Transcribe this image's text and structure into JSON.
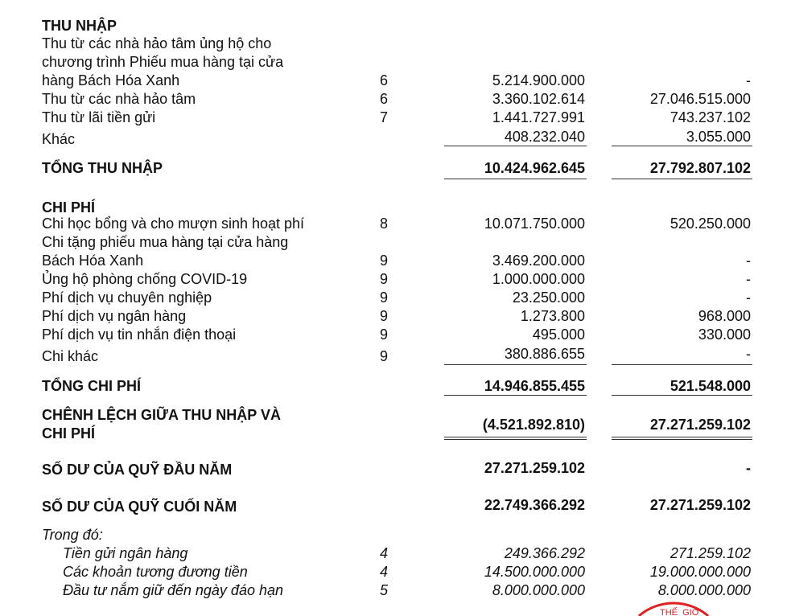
{
  "income": {
    "heading": "THU NHẬP",
    "rows": [
      {
        "label": [
          "Thu từ các nhà hảo tâm ủng hộ cho",
          "chương trình Phiếu mua hàng tại cửa",
          "hàng Bách Hóa Xanh"
        ],
        "note": "6",
        "current": "5.214.900.000",
        "prior": "-"
      },
      {
        "label": "Thu từ các nhà hảo tâm",
        "note": "6",
        "current": "3.360.102.614",
        "prior": "27.046.515.000"
      },
      {
        "label": "Thu từ lãi tiền gửi",
        "note": "7",
        "current": "1.441.727.991",
        "prior": "743.237.102"
      },
      {
        "label": "Khác",
        "note": "",
        "current": "408.232.040",
        "prior": "3.055.000"
      }
    ],
    "total": {
      "label": "TỔNG THU NHẬP",
      "current": "10.424.962.645",
      "prior": "27.792.807.102"
    }
  },
  "expenses": {
    "heading": "CHI PHÍ",
    "rows": [
      {
        "label": "Chi học bổng và cho mượn sinh hoạt phí",
        "note": "8",
        "current": "10.071.750.000",
        "prior": "520.250.000"
      },
      {
        "label": [
          "Chi tặng phiếu mua hàng tại cửa hàng",
          "Bách Hóa Xanh"
        ],
        "note": "9",
        "current": "3.469.200.000",
        "prior": "-"
      },
      {
        "label": "Ủng hộ phòng chống COVID-19",
        "note": "9",
        "current": "1.000.000.000",
        "prior": "-"
      },
      {
        "label": "Phí dịch vụ chuyên nghiệp",
        "note": "9",
        "current": "23.250.000",
        "prior": "-"
      },
      {
        "label": "Phí dịch vụ ngân hàng",
        "note": "9",
        "current": "1.273.800",
        "prior": "968.000"
      },
      {
        "label": "Phí dịch vụ tin nhắn điện thoại",
        "note": "9",
        "current": "495.000",
        "prior": "330.000"
      },
      {
        "label": "Chi khác",
        "note": "9",
        "current": "380.886.655",
        "prior": "-"
      }
    ],
    "total": {
      "label": "TỔNG CHI PHÍ",
      "current": "14.946.855.455",
      "prior": "521.548.000"
    }
  },
  "difference": {
    "label": [
      "CHÊNH LỆCH GIỮA THU NHẬP VÀ",
      "CHI PHÍ"
    ],
    "current": "(4.521.892.810)",
    "prior": "27.271.259.102"
  },
  "opening": {
    "label": "SỐ DƯ CỦA QUỸ ĐẦU NĂM",
    "current": "27.271.259.102",
    "prior": "-"
  },
  "closing": {
    "label": "SỐ DƯ CỦA QUỸ CUỐI NĂM",
    "current": "22.749.366.292",
    "prior": "27.271.259.102"
  },
  "breakdown": {
    "heading": "Trong đó:",
    "rows": [
      {
        "label": "Tiền gửi ngân hàng",
        "note": "4",
        "current": "249.366.292",
        "prior": "271.259.102"
      },
      {
        "label": "Các khoản tương đương tiền",
        "note": "4",
        "current": "14.500.000.000",
        "prior": "19.000.000.000"
      },
      {
        "label": "Đầu tư nắm giữ đến ngày đáo hạn",
        "note": "5",
        "current": "8.000.000.000",
        "prior": "8.000.000.000"
      }
    ]
  },
  "stamp": {
    "text": "THẾ GIỚI",
    "color": "#e02020"
  }
}
